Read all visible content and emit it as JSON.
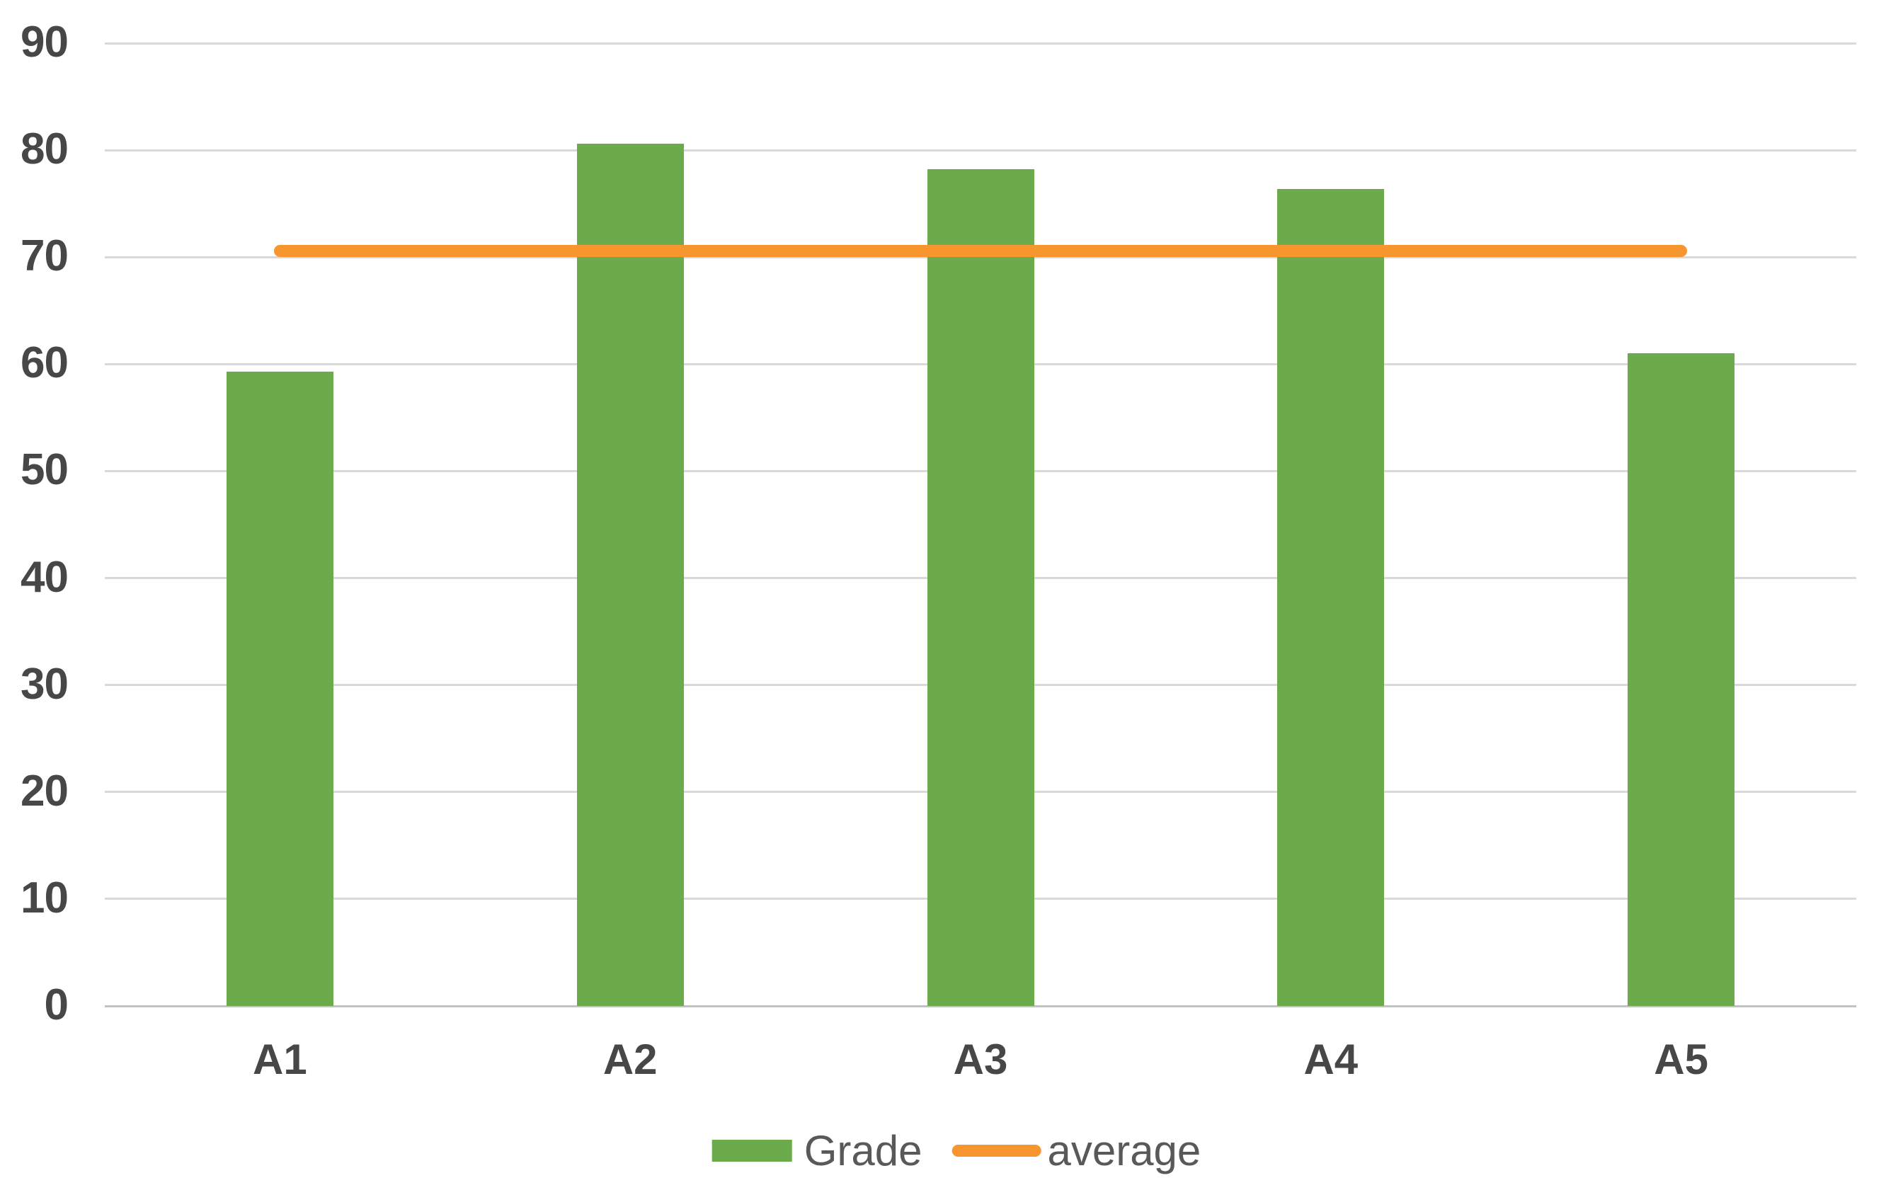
{
  "page": {
    "background": "#ffffff"
  },
  "chart_data": {
    "type": "bar",
    "title": "",
    "xlabel": "",
    "ylabel": "",
    "categories": [
      "A1",
      "A2",
      "A3",
      "A4",
      "A5"
    ],
    "series": [
      {
        "name": "Grade",
        "kind": "bar",
        "color": "#6cab4c",
        "values": [
          59.3,
          80.6,
          78.2,
          76.4,
          61.0
        ]
      },
      {
        "name": "average",
        "kind": "line",
        "color": "#f7952e",
        "values": [
          70.6,
          70.6,
          70.6,
          70.6,
          70.6
        ]
      }
    ],
    "ylim": [
      0,
      90
    ],
    "yticks": [
      0,
      10,
      20,
      30,
      40,
      50,
      60,
      70,
      80,
      90
    ],
    "grid": "horizontal-only",
    "gridline_color": "#d9d9d9",
    "axis_line_color": "#c2c2c2",
    "tick_label_color": "#474747",
    "legend_position": "bottom-center",
    "legend_text_color": "#595959"
  },
  "legend": {
    "grade_label": "Grade",
    "average_label": "average"
  }
}
